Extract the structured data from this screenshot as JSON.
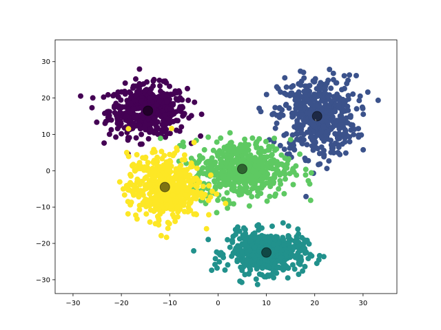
{
  "chart_data": {
    "type": "scatter",
    "title": "",
    "xlabel": "",
    "ylabel": "",
    "xlim": [
      -33.7,
      37.0
    ],
    "ylim": [
      -33.8,
      36.0
    ],
    "xticks": [
      -30,
      -20,
      -10,
      0,
      10,
      20,
      30
    ],
    "yticks": [
      -30,
      -20,
      -10,
      0,
      10,
      20,
      30
    ],
    "xtick_labels": [
      "−30",
      "−20",
      "−10",
      "0",
      "10",
      "20",
      "30"
    ],
    "ytick_labels": [
      "−30",
      "−20",
      "−10",
      "0",
      "10",
      "20",
      "30"
    ],
    "grid": false,
    "legend": false,
    "clusters": [
      {
        "color": "#440154",
        "center": [
          -14.5,
          16.5
        ],
        "spread": [
          4.0,
          3.5
        ],
        "count": 500
      },
      {
        "color": "#3b528b",
        "center": [
          20.5,
          15.0
        ],
        "spread": [
          4.0,
          5.5
        ],
        "count": 500
      },
      {
        "color": "#21918c",
        "center": [
          10.0,
          -22.5
        ],
        "spread": [
          4.0,
          2.8
        ],
        "count": 500
      },
      {
        "color": "#5ec962",
        "center": [
          5.0,
          0.5
        ],
        "spread": [
          5.0,
          4.0
        ],
        "count": 500
      },
      {
        "color": "#fde725",
        "center": [
          -11.0,
          -4.5
        ],
        "spread": [
          3.8,
          4.5
        ],
        "count": 500
      }
    ],
    "centroid_color": "#000000",
    "centroid_alpha": 0.5
  }
}
